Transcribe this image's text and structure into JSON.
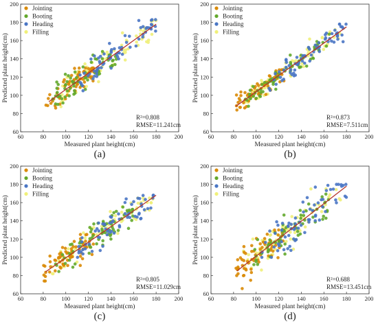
{
  "colors": {
    "Jointing": "#d98a06",
    "Booting": "#63a82c",
    "Heading": "#4a76c4",
    "Filling": "#f0f07a",
    "fit_line": "#b5332b",
    "axis": "#333333"
  },
  "chart_data": [
    {
      "type": "scatter",
      "panel_label": "(a)",
      "xlabel": "Measured plant height(cm)",
      "ylabel": "Predicted plant height(cm)",
      "xlim": [
        60,
        200
      ],
      "ylim": [
        60,
        200
      ],
      "xticks": [
        "60",
        "80",
        "100",
        "120",
        "140",
        "160",
        "180",
        "200"
      ],
      "yticks": [
        "60",
        "80",
        "100",
        "120",
        "140",
        "160",
        "180",
        "200"
      ],
      "legend": [
        "Jointing",
        "Booting",
        "Heading",
        "Filling"
      ],
      "legend_position": "top-left",
      "grid": false,
      "r2_label": "R²=0.808",
      "rmse_label": "RMSE=11.241cm",
      "fit_line": [
        [
          85,
          93
        ],
        [
          180,
          178
        ]
      ],
      "series": [
        {
          "name": "Jointing",
          "x_range": [
            82,
            125
          ],
          "y_range": [
            85,
            130
          ]
        },
        {
          "name": "Booting",
          "x_range": [
            88,
            145
          ],
          "y_range": [
            90,
            150
          ]
        },
        {
          "name": "Heading",
          "x_range": [
            110,
            180
          ],
          "y_range": [
            105,
            183
          ]
        },
        {
          "name": "Filling",
          "x_range": [
            95,
            180
          ],
          "y_range": [
            85,
            182
          ]
        }
      ]
    },
    {
      "type": "scatter",
      "panel_label": "(b)",
      "xlabel": "Measured plant height(cm)",
      "ylabel": "Predicted plant height(cm)",
      "xlim": [
        60,
        200
      ],
      "ylim": [
        60,
        200
      ],
      "xticks": [
        "60",
        "80",
        "100",
        "120",
        "140",
        "160",
        "180",
        "200"
      ],
      "yticks": [
        "60",
        "80",
        "100",
        "120",
        "140",
        "160",
        "180",
        "200"
      ],
      "legend": [
        "Jointing",
        "Booting",
        "Heading",
        "Filling"
      ],
      "legend_position": "top-left",
      "grid": false,
      "r2_label": "R²=0.873",
      "rmse_label": "RMSE=7.511cm",
      "fit_line": [
        [
          82,
          88
        ],
        [
          180,
          175
        ]
      ],
      "series": [
        {
          "name": "Jointing",
          "x_range": [
            82,
            125
          ],
          "y_range": [
            78,
            128
          ]
        },
        {
          "name": "Booting",
          "x_range": [
            90,
            165
          ],
          "y_range": [
            88,
            168
          ]
        },
        {
          "name": "Heading",
          "x_range": [
            110,
            180
          ],
          "y_range": [
            105,
            178
          ]
        },
        {
          "name": "Filling",
          "x_range": [
            90,
            178
          ],
          "y_range": [
            88,
            172
          ]
        }
      ]
    },
    {
      "type": "scatter",
      "panel_label": "(c)",
      "xlabel": "Measured plant height(cm)",
      "ylabel": "Predicted plant height(cm)",
      "xlim": [
        60,
        200
      ],
      "ylim": [
        60,
        200
      ],
      "xticks": [
        "60",
        "80",
        "100",
        "120",
        "140",
        "160",
        "180",
        "200"
      ],
      "yticks": [
        "60",
        "80",
        "100",
        "120",
        "140",
        "160",
        "180",
        "200"
      ],
      "legend": [
        "Jointing",
        "Booting",
        "Heading",
        "Filling"
      ],
      "legend_position": "top-left",
      "grid": false,
      "r2_label": "R²=0.805",
      "rmse_label": "RMSE=11.029cm",
      "fit_line": [
        [
          82,
          84
        ],
        [
          180,
          168
        ]
      ],
      "series": [
        {
          "name": "Jointing",
          "x_range": [
            80,
            125
          ],
          "y_range": [
            74,
            125
          ]
        },
        {
          "name": "Booting",
          "x_range": [
            90,
            160
          ],
          "y_range": [
            82,
            160
          ]
        },
        {
          "name": "Heading",
          "x_range": [
            110,
            180
          ],
          "y_range": [
            100,
            168
          ]
        },
        {
          "name": "Filling",
          "x_range": [
            88,
            178
          ],
          "y_range": [
            82,
            165
          ]
        }
      ]
    },
    {
      "type": "scatter",
      "panel_label": "(d)",
      "xlabel": "Measured plant height(cm)",
      "ylabel": "Predicted plant height(cm)",
      "xlim": [
        60,
        200
      ],
      "ylim": [
        60,
        200
      ],
      "xticks": [
        "60",
        "80",
        "100",
        "120",
        "140",
        "160",
        "180",
        "200"
      ],
      "yticks": [
        "60",
        "80",
        "100",
        "120",
        "140",
        "160",
        "180",
        "200"
      ],
      "legend": [
        "Jointing",
        "Booting",
        "Heading",
        "Filling"
      ],
      "legend_position": "top-left",
      "grid": false,
      "r2_label": "R²=0.688",
      "rmse_label": "RMSE=13.451cm",
      "fit_line": [
        [
          83,
          85
        ],
        [
          180,
          178
        ]
      ],
      "series": [
        {
          "name": "Jointing",
          "x_range": [
            82,
            125
          ],
          "y_range": [
            62,
            130
          ]
        },
        {
          "name": "Booting",
          "x_range": [
            95,
            165
          ],
          "y_range": [
            90,
            180
          ]
        },
        {
          "name": "Heading",
          "x_range": [
            105,
            180
          ],
          "y_range": [
            100,
            180
          ]
        },
        {
          "name": "Filling",
          "x_range": [
            88,
            178
          ],
          "y_range": [
            70,
            175
          ]
        }
      ]
    }
  ]
}
